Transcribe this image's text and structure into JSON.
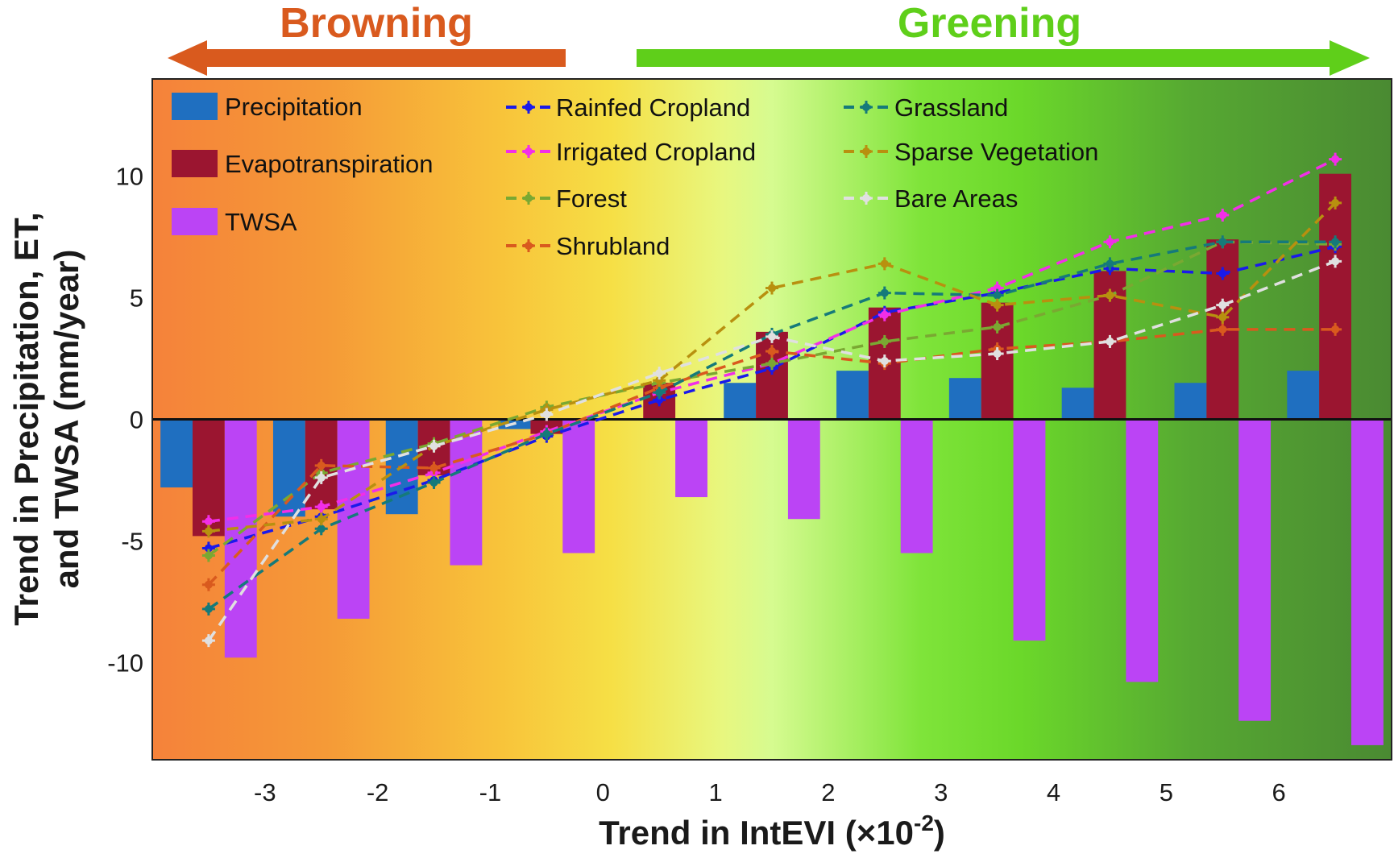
{
  "banners": {
    "left_text": "Browning",
    "left_color": "#d95a1e",
    "right_text": "Greening",
    "right_color": "#5fcf1a"
  },
  "chart_data": {
    "type": "bar",
    "title": "",
    "xlabel": "Trend in IntEVI (×10",
    "xlabel_sup": "-2",
    "xlabel_tail": ")",
    "ylabel_line1": "Trend in Precipitation, ET,",
    "ylabel_line2": "and TWSA (mm/year)",
    "xlim": [
      -4,
      7
    ],
    "ylim": [
      -14,
      14
    ],
    "x_ticks": [
      "-3",
      "-2",
      "-1",
      "0",
      "1",
      "2",
      "3",
      "4",
      "5",
      "6"
    ],
    "x_tick_values": [
      -3,
      -2,
      -1,
      0,
      1,
      2,
      3,
      4,
      5,
      6
    ],
    "y_ticks": [
      "10",
      "5",
      "0",
      "-5",
      "-10"
    ],
    "y_tick_values": [
      10,
      5,
      0,
      -5,
      -10
    ],
    "x_bins": [
      -3.5,
      -2.5,
      -1.5,
      -0.5,
      0.5,
      1.5,
      2.5,
      3.5,
      4.5,
      5.5,
      6.5
    ],
    "bar_series": [
      {
        "name": "Precipitation",
        "color": "#1f6fc0",
        "values": [
          -2.8,
          -4.0,
          -3.9,
          -0.4,
          0.0,
          1.5,
          2.0,
          1.7,
          1.3,
          1.5,
          2.0
        ]
      },
      {
        "name": "Evapotranspiration",
        "color": "#9b1530",
        "values": [
          -4.8,
          -3.7,
          -2.3,
          -0.6,
          1.5,
          3.6,
          4.6,
          4.8,
          6.1,
          7.4,
          10.1
        ]
      },
      {
        "name": "TWSA",
        "color": "#bb44f5",
        "values": [
          -9.8,
          -8.2,
          -6.0,
          -5.5,
          -3.2,
          -4.1,
          -5.5,
          -9.1,
          -10.8,
          -12.4,
          -13.4
        ]
      }
    ],
    "line_series": [
      {
        "name": "Rainfed Cropland",
        "color": "#1a1aea",
        "values": [
          -5.3,
          -4.0,
          -2.5,
          -0.7,
          0.8,
          2.1,
          4.4,
          5.2,
          6.2,
          6.0,
          7.1
        ]
      },
      {
        "name": "Irrigated Cropland",
        "color": "#f22ee8",
        "values": [
          -4.2,
          -3.6,
          -2.2,
          -0.5,
          1.1,
          2.3,
          4.3,
          5.4,
          7.3,
          8.4,
          10.7
        ]
      },
      {
        "name": "Forest",
        "color": "#7aa832",
        "values": [
          -5.6,
          -2.2,
          -1.0,
          0.5,
          1.5,
          2.3,
          3.2,
          3.8,
          5.1,
          7.3,
          7.2
        ]
      },
      {
        "name": "Shrubland",
        "color": "#d95a1e",
        "values": [
          -6.8,
          -1.9,
          -2.0,
          -0.6,
          1.3,
          2.8,
          2.3,
          2.9,
          3.2,
          3.7,
          3.7
        ]
      },
      {
        "name": "Grassland",
        "color": "#157a7a",
        "values": [
          -7.8,
          -4.5,
          -2.6,
          -0.6,
          1.1,
          3.5,
          5.2,
          5.1,
          6.4,
          7.3,
          7.3
        ]
      },
      {
        "name": "Sparse Vegetation",
        "color": "#b8900f",
        "values": [
          -4.6,
          -4.1,
          -1.1,
          0.4,
          1.6,
          5.4,
          6.4,
          4.7,
          5.1,
          4.2,
          8.9
        ]
      },
      {
        "name": "Bare Areas",
        "color": "#e0e0e0",
        "values": [
          -9.1,
          -2.4,
          -1.1,
          0.2,
          1.9,
          3.4,
          2.4,
          2.7,
          3.2,
          4.7,
          6.5
        ]
      }
    ],
    "gradient_colors": [
      "#f5823a",
      "#f59a37",
      "#f8c33a",
      "#f6df45",
      "#e8f77f",
      "#d6fb90",
      "#7fe43a",
      "#6bd82a",
      "#56a832",
      "#4a8a32"
    ],
    "legend_placement": "top-inside",
    "grid": false
  }
}
